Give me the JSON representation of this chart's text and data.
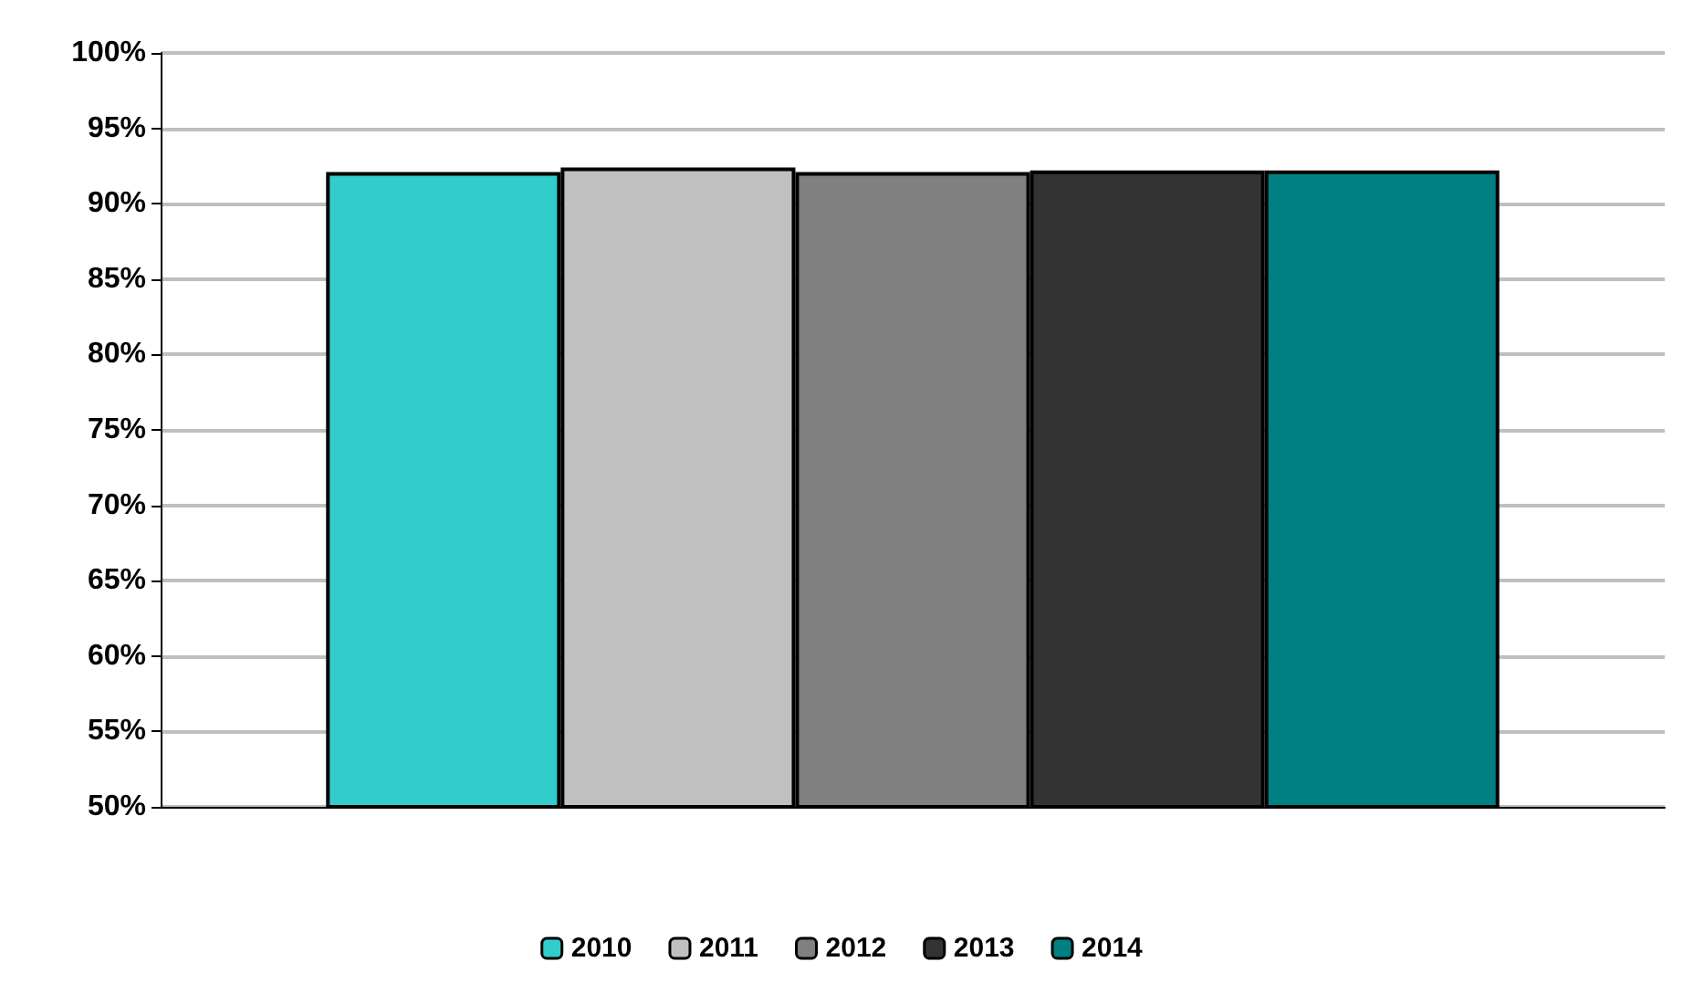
{
  "chart_data": {
    "type": "bar",
    "categories": [
      null
    ],
    "series": [
      {
        "name": "2010",
        "color": "#33cccc",
        "values": [
          92.1
        ]
      },
      {
        "name": "2011",
        "color": "#c0c0c0",
        "values": [
          92.4
        ]
      },
      {
        "name": "2012",
        "color": "#808080",
        "values": [
          92.1
        ]
      },
      {
        "name": "2013",
        "color": "#333333",
        "values": [
          92.2
        ]
      },
      {
        "name": "2014",
        "color": "#008080",
        "values": [
          92.2
        ]
      }
    ],
    "ylim": [
      50,
      100
    ],
    "yticks": [
      {
        "value": 50,
        "label": "50%"
      },
      {
        "value": 55,
        "label": "55%"
      },
      {
        "value": 60,
        "label": "60%"
      },
      {
        "value": 65,
        "label": "65%"
      },
      {
        "value": 70,
        "label": "70%"
      },
      {
        "value": 75,
        "label": "75%"
      },
      {
        "value": 80,
        "label": "80%"
      },
      {
        "value": 85,
        "label": "85%"
      },
      {
        "value": 90,
        "label": "90%"
      },
      {
        "value": 95,
        "label": "95%"
      },
      {
        "value": 100,
        "label": "100%"
      }
    ],
    "grid": "y",
    "legend": "bottom"
  }
}
